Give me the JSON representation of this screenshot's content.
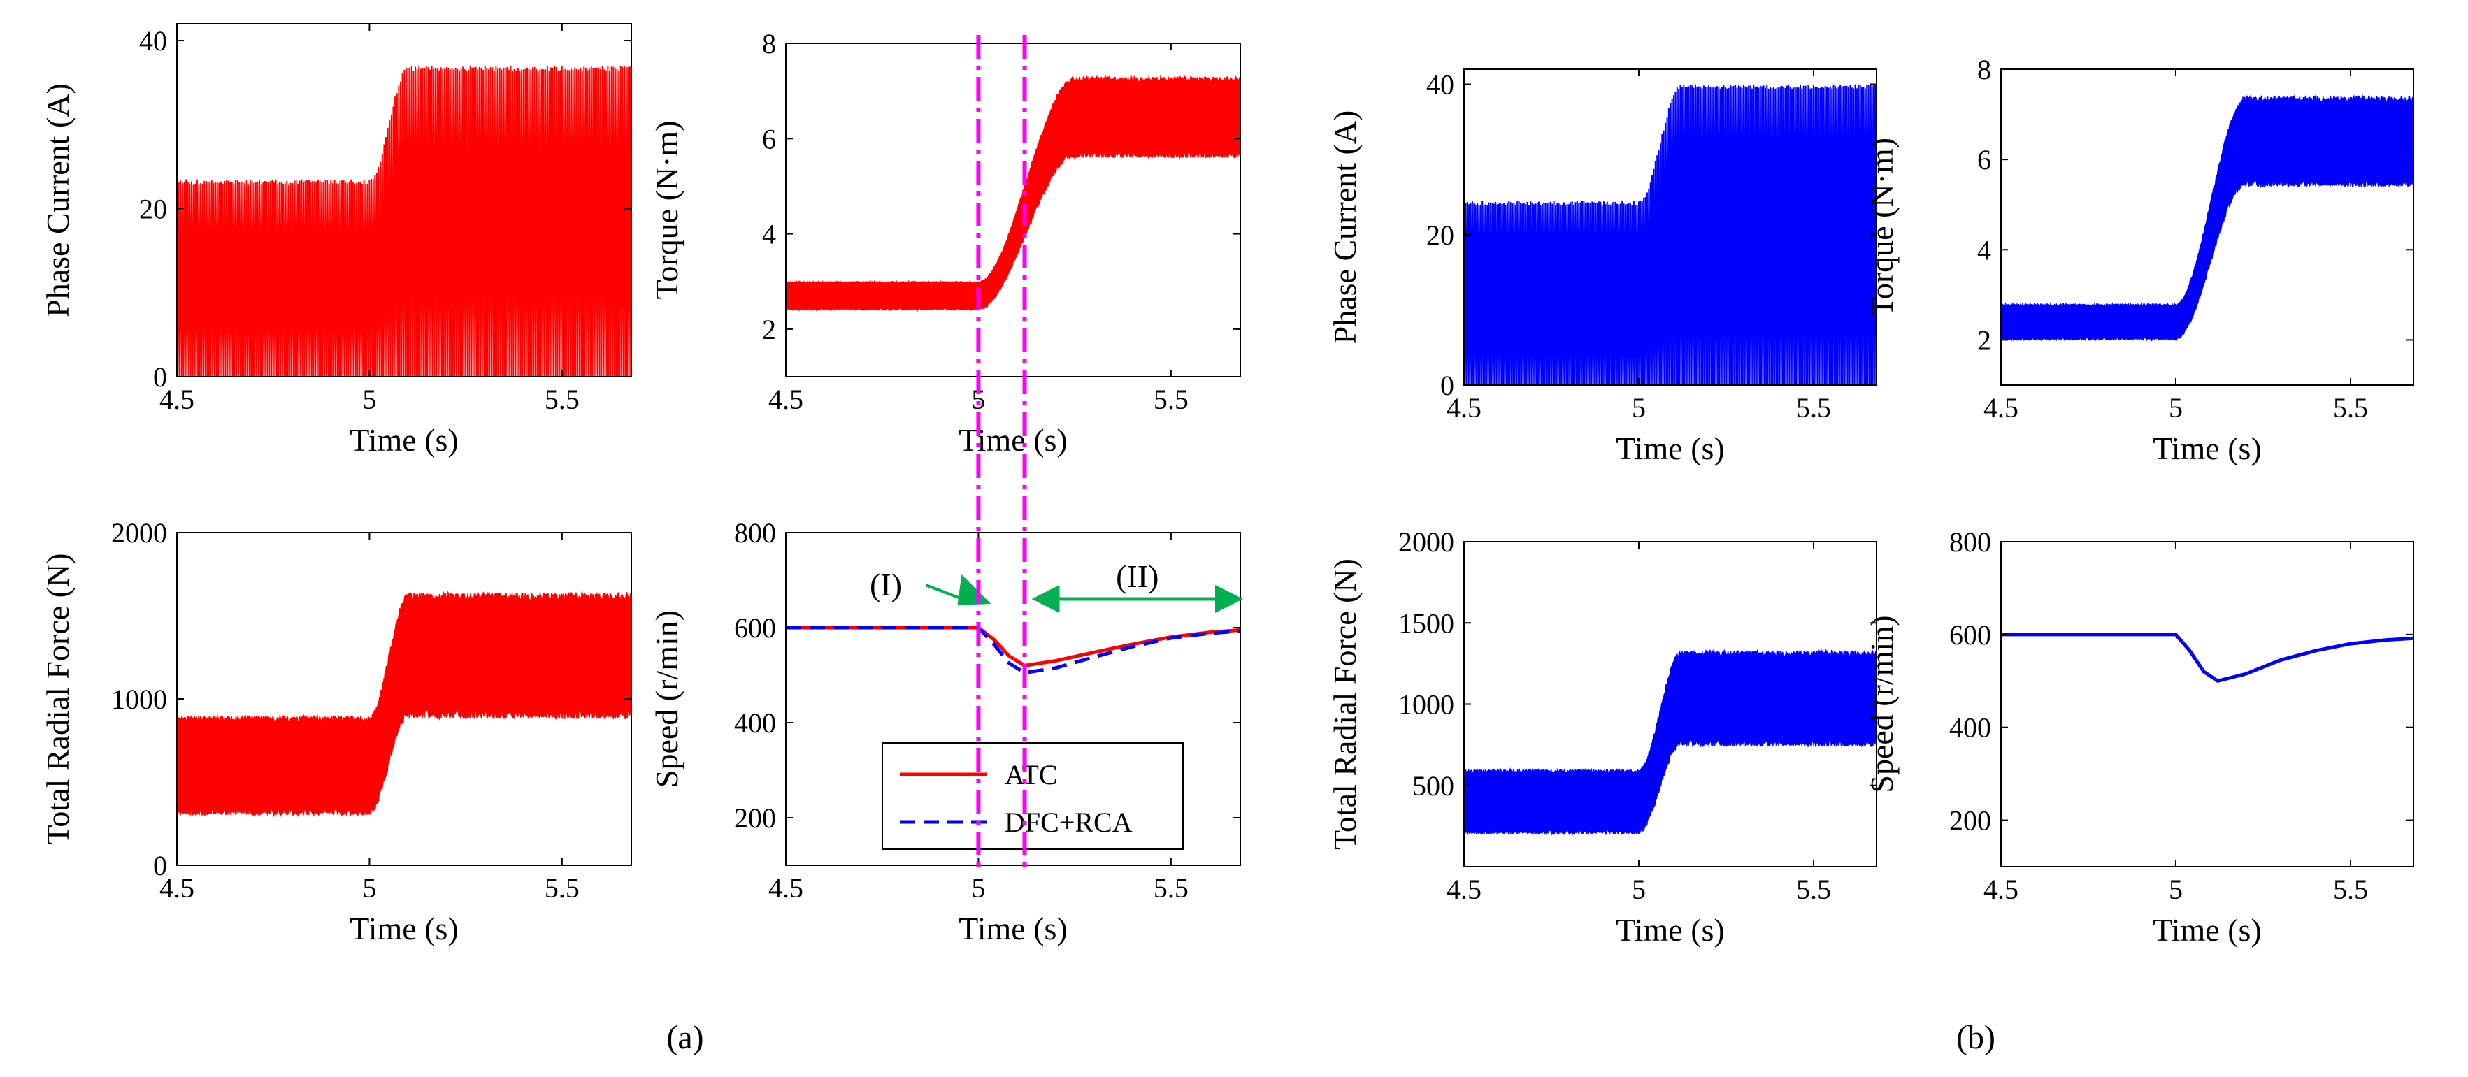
{
  "figure": {
    "panel_labels": [
      "(a)",
      "(b)"
    ]
  },
  "colors": {
    "atc": "#ff0000",
    "dfc_rca": "#0000ff",
    "marker": "#ff00ff",
    "arrow": "#00b050",
    "grid": "#000000"
  },
  "chart_data": [
    {
      "id": "a-current",
      "panel": "(a)",
      "type": "line",
      "xlabel": "Time (s)",
      "ylabel": "Phase Current (A)",
      "xlim": [
        4.5,
        5.68
      ],
      "ylim": [
        0,
        42
      ],
      "xticks": [
        4.5,
        5,
        5.5
      ],
      "xtick_labels": [
        "4.5",
        "5",
        "5.5"
      ],
      "yticks": [
        0,
        20,
        40
      ],
      "ytick_labels": [
        "0",
        "20",
        "40"
      ],
      "series": [
        {
          "name": "ATC",
          "color": "#ff0000",
          "style": "oscillation",
          "t_step": 5.0,
          "rise_time": 0.1,
          "upper_before": 23.5,
          "upper_after": 37,
          "lower_before": 0,
          "lower_after": 0,
          "cycles_per_second": 210
        }
      ]
    },
    {
      "id": "a-torque",
      "panel": "(a)",
      "type": "line",
      "xlabel": "Time (s)",
      "ylabel": "Torque (N·m)",
      "xlim": [
        4.5,
        5.68
      ],
      "ylim": [
        1,
        8
      ],
      "xticks": [
        4.5,
        5,
        5.5
      ],
      "xtick_labels": [
        "4.5",
        "5",
        "5.5"
      ],
      "yticks": [
        2,
        4,
        6,
        8
      ],
      "ytick_labels": [
        "2",
        "4",
        "6",
        "8"
      ],
      "series": [
        {
          "name": "ATC",
          "color": "#ff0000",
          "style": "band",
          "t_step": 5.0,
          "rise_time": 0.25,
          "upper_before": 3.0,
          "upper_after": 7.3,
          "lower_before": 2.4,
          "lower_after": 5.6
        }
      ]
    },
    {
      "id": "a-force",
      "panel": "(a)",
      "type": "line",
      "xlabel": "Time (s)",
      "ylabel": "Total Radial Force (N)",
      "xlim": [
        4.5,
        5.68
      ],
      "ylim": [
        0,
        2000
      ],
      "xticks": [
        4.5,
        5,
        5.5
      ],
      "xtick_labels": [
        "4.5",
        "5",
        "5.5"
      ],
      "yticks": [
        0,
        1000,
        2000
      ],
      "ytick_labels": [
        "0",
        "1000",
        "2000"
      ],
      "series": [
        {
          "name": "ATC",
          "color": "#ff0000",
          "style": "band",
          "t_step": 5.0,
          "rise_time": 0.1,
          "upper_before": 900,
          "upper_after": 1640,
          "lower_before": 300,
          "lower_after": 880
        }
      ]
    },
    {
      "id": "a-speed",
      "panel": "(a)",
      "type": "line",
      "xlabel": "Time (s)",
      "ylabel": "Speed (r/min)",
      "xlim": [
        4.5,
        5.68
      ],
      "ylim": [
        100,
        800
      ],
      "xticks": [
        4.5,
        5,
        5.5
      ],
      "xtick_labels": [
        "4.5",
        "5",
        "5.5"
      ],
      "yticks": [
        200,
        400,
        600,
        800
      ],
      "ytick_labels": [
        "200",
        "400",
        "600",
        "800"
      ],
      "series": [
        {
          "name": "ATC",
          "color": "#ff0000",
          "style": "line",
          "x": [
            4.5,
            5.0,
            5.04,
            5.08,
            5.12,
            5.2,
            5.3,
            5.4,
            5.5,
            5.6,
            5.68
          ],
          "y": [
            600,
            600,
            575,
            540,
            520,
            530,
            548,
            565,
            580,
            590,
            595
          ]
        },
        {
          "name": "DFC+RCA",
          "color": "#0000ff",
          "style": "dashed",
          "x": [
            4.5,
            5.0,
            5.04,
            5.08,
            5.12,
            5.2,
            5.3,
            5.4,
            5.5,
            5.6,
            5.68
          ],
          "y": [
            600,
            600,
            565,
            525,
            505,
            515,
            538,
            560,
            578,
            588,
            593
          ]
        }
      ],
      "legend": {
        "location": "bottom-center",
        "entries": [
          "ATC",
          "DFC+RCA"
        ]
      },
      "annotations": [
        {
          "text": "(I)",
          "color": "#ff00ff",
          "at_x": 5.0,
          "arrow_color": "#00b050"
        },
        {
          "text": "(II)",
          "color": "#ff00ff",
          "from_x": 5.12,
          "to_x": 5.68,
          "arrow_color": "#00b050"
        }
      ]
    },
    {
      "id": "b-current",
      "panel": "(b)",
      "type": "line",
      "xlabel": "Time (s)",
      "ylabel": "Phase Current (A)",
      "xlim": [
        4.5,
        5.68
      ],
      "ylim": [
        0,
        42
      ],
      "xticks": [
        4.5,
        5,
        5.5
      ],
      "xtick_labels": [
        "4.5",
        "5",
        "5.5"
      ],
      "yticks": [
        0,
        20,
        40
      ],
      "ytick_labels": [
        "0",
        "20",
        "40"
      ],
      "series": [
        {
          "name": "DFC+RCA",
          "color": "#0000ff",
          "style": "oscillation",
          "t_step": 5.0,
          "rise_time": 0.12,
          "upper_before": 24.5,
          "upper_after": 40,
          "lower_before": 0,
          "lower_after": 0,
          "cycles_per_second": 210
        }
      ]
    },
    {
      "id": "b-torque",
      "panel": "(b)",
      "type": "line",
      "xlabel": "Time (s)",
      "ylabel": "Torque (N·m)",
      "xlim": [
        4.5,
        5.68
      ],
      "ylim": [
        1,
        8
      ],
      "xticks": [
        4.5,
        5,
        5.5
      ],
      "xtick_labels": [
        "4.5",
        "5",
        "5.5"
      ],
      "yticks": [
        2,
        4,
        6,
        8
      ],
      "ytick_labels": [
        "2",
        "4",
        "6",
        "8"
      ],
      "series": [
        {
          "name": "DFC+RCA",
          "color": "#0000ff",
          "style": "band",
          "t_step": 5.0,
          "rise_time": 0.2,
          "upper_before": 2.8,
          "upper_after": 7.4,
          "lower_before": 2.0,
          "lower_after": 5.4
        }
      ]
    },
    {
      "id": "b-force",
      "panel": "(b)",
      "type": "line",
      "xlabel": "Time (s)",
      "ylabel": "Total Radial Force (N)",
      "xlim": [
        4.5,
        5.68
      ],
      "ylim": [
        0,
        2000
      ],
      "xticks": [
        4.5,
        5,
        5.5
      ],
      "xtick_labels": [
        "4.5",
        "5",
        "5.5"
      ],
      "yticks": [
        500,
        1000,
        1500,
        2000
      ],
      "ytick_labels": [
        "500",
        "1000",
        "1500",
        "2000"
      ],
      "series": [
        {
          "name": "DFC+RCA",
          "color": "#0000ff",
          "style": "band",
          "t_step": 5.0,
          "rise_time": 0.12,
          "upper_before": 600,
          "upper_after": 1330,
          "lower_before": 200,
          "lower_after": 740
        }
      ]
    },
    {
      "id": "b-speed",
      "panel": "(b)",
      "type": "line",
      "xlabel": "Time (s)",
      "ylabel": "Speed (r/min)",
      "xlim": [
        4.5,
        5.68
      ],
      "ylim": [
        100,
        800
      ],
      "xticks": [
        4.5,
        5,
        5.5
      ],
      "xtick_labels": [
        "4.5",
        "5",
        "5.5"
      ],
      "yticks": [
        200,
        400,
        600,
        800
      ],
      "ytick_labels": [
        "200",
        "400",
        "600",
        "800"
      ],
      "series": [
        {
          "name": "DFC+RCA",
          "color": "#0000ff",
          "style": "line",
          "x": [
            4.5,
            5.0,
            5.04,
            5.08,
            5.12,
            5.2,
            5.3,
            5.4,
            5.5,
            5.6,
            5.68
          ],
          "y": [
            600,
            600,
            565,
            520,
            500,
            515,
            545,
            565,
            580,
            588,
            592
          ]
        }
      ]
    }
  ]
}
